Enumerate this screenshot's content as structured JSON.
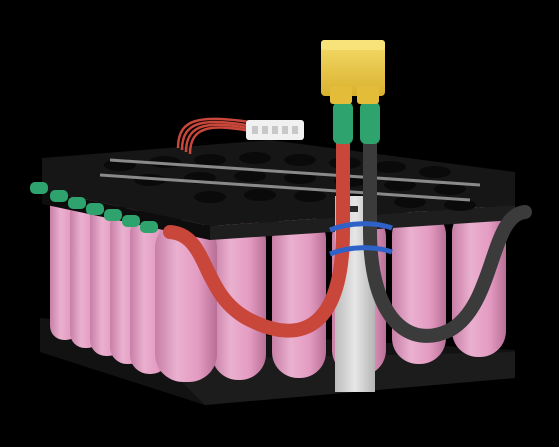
{
  "image": {
    "subject": "battery-pack-render",
    "colors": {
      "background": "#000000",
      "cell_pink": "#e6a3c6",
      "cell_shadow": "#c27aa2",
      "holder_black": "#151515",
      "connector_yellow": "#f2cf4d",
      "wire_red": "#c9463a",
      "wire_black": "#3b3b3b",
      "sleeve_green": "#2fa36d",
      "tie_blue": "#2e62c9",
      "bms_plate": "#d8d8d8",
      "balance_plug": "#f1f1f1"
    }
  }
}
